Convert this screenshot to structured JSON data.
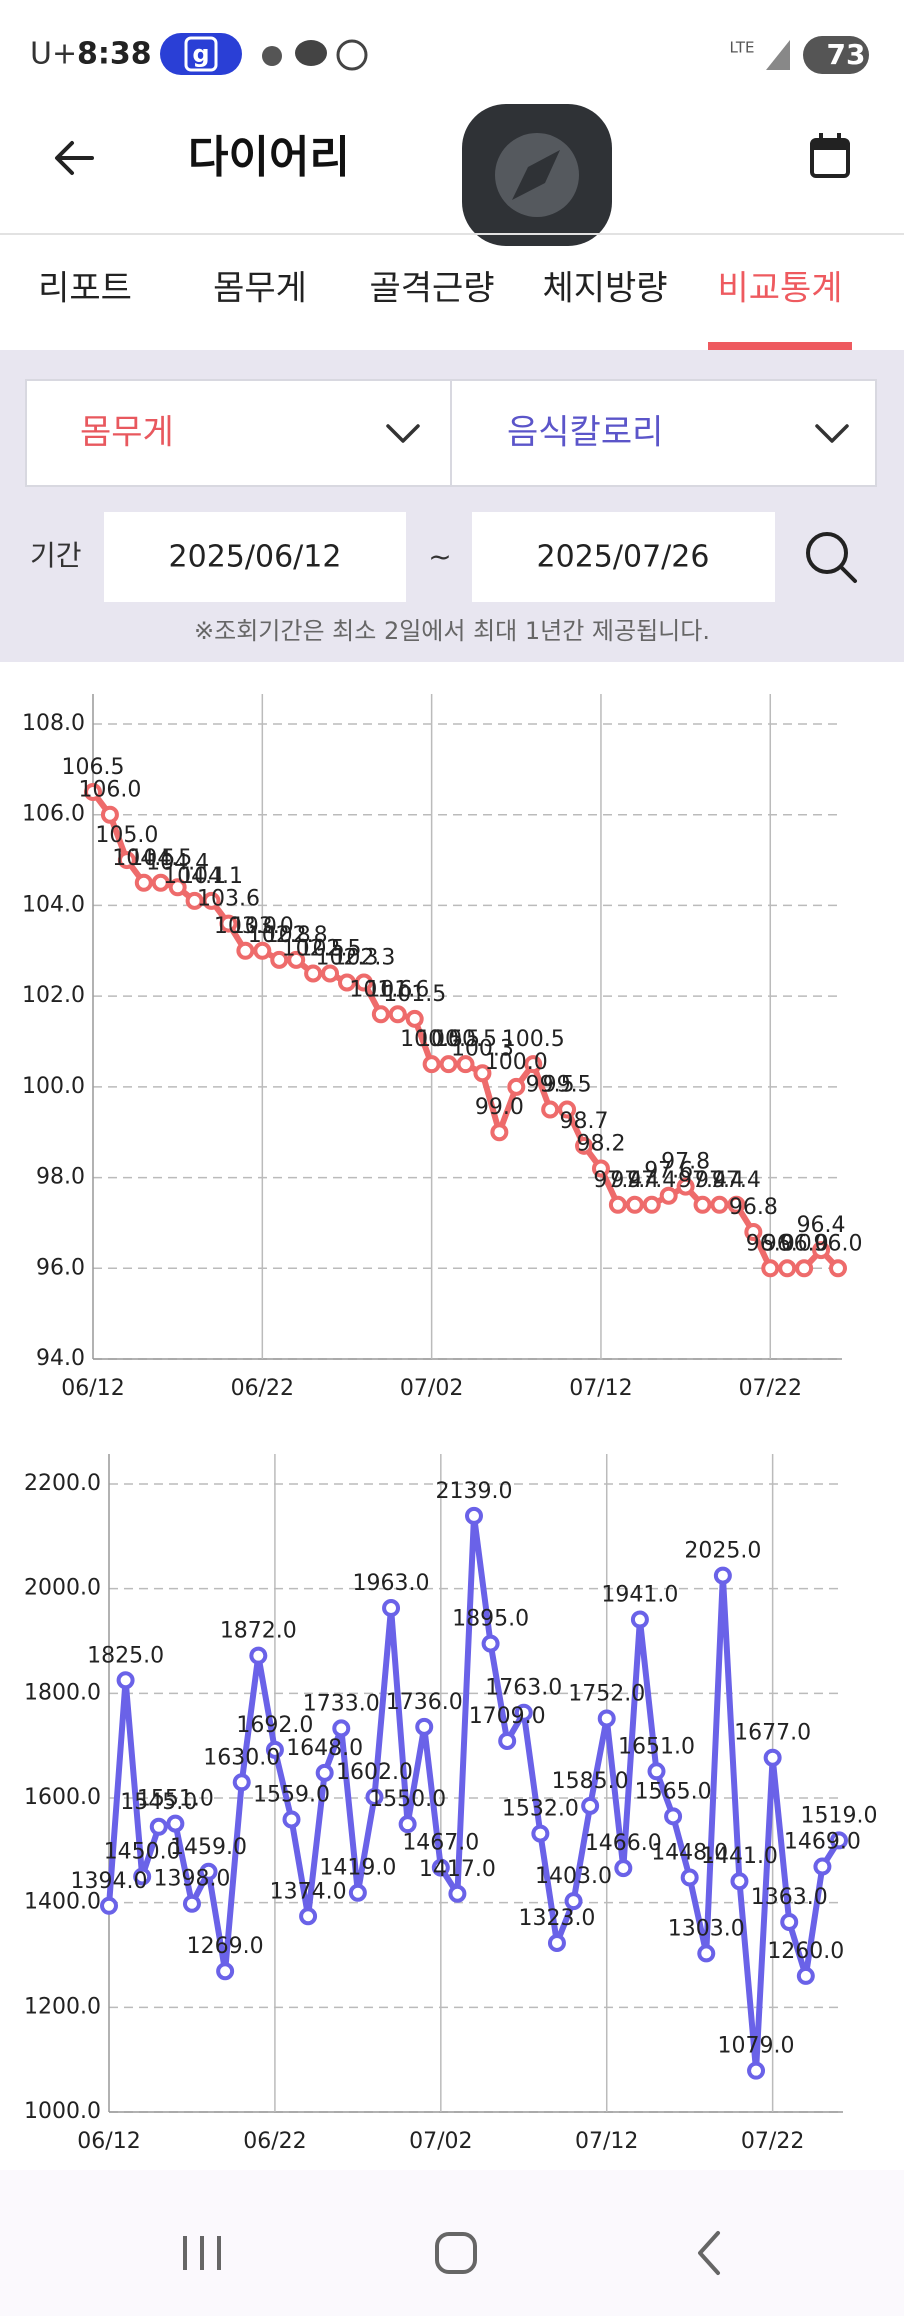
{
  "status_bar": {
    "carrier": "U+",
    "time": "8:38",
    "app_badge": "g",
    "network": "LTE",
    "battery": "73"
  },
  "header": {
    "title": "다이어리"
  },
  "tabs": [
    "리포트",
    "몸무게",
    "골격근량",
    "체지방량",
    "비교통계"
  ],
  "active_tab": 4,
  "selectors": [
    {
      "label": "몸무게",
      "color": "#e8585e"
    },
    {
      "label": "음식칼로리",
      "color": "#5b55c9"
    }
  ],
  "period": {
    "label": "기간",
    "start": "2025/06/12",
    "separator": "~",
    "end": "2025/07/26"
  },
  "note": "※조회기간은 최소 2일에서 최대 1년간 제공됩니다.",
  "chart_data": [
    {
      "type": "line",
      "categories": [
        "06/12",
        null,
        null,
        null,
        null,
        null,
        null,
        null,
        null,
        null,
        "06/22",
        null,
        null,
        null,
        null,
        null,
        null,
        null,
        null,
        null,
        "07/02",
        null,
        null,
        null,
        null,
        null,
        null,
        null,
        null,
        null,
        "07/12",
        null,
        null,
        null,
        null,
        null,
        null,
        null,
        null,
        null,
        "07/22",
        null,
        null,
        null,
        null
      ],
      "values": [
        106.5,
        106.0,
        105.0,
        104.5,
        104.5,
        104.4,
        104.1,
        104.1,
        103.6,
        103.0,
        103.0,
        102.8,
        102.8,
        102.5,
        102.5,
        102.3,
        102.3,
        101.6,
        101.6,
        101.5,
        100.5,
        100.5,
        100.5,
        100.3,
        99.0,
        100.0,
        100.5,
        99.5,
        99.5,
        98.7,
        98.2,
        97.4,
        97.4,
        97.4,
        97.6,
        97.8,
        97.4,
        97.4,
        97.4,
        96.8,
        96.0,
        96.0,
        96.0,
        96.4,
        96.0
      ],
      "value_labels": [
        "106.5",
        "106.0",
        "105.0",
        "104.5",
        "104.5",
        "104.4",
        "104.1",
        "104.1",
        "103.6",
        "103.0",
        "103.0",
        "102.8",
        "102.8",
        "102.5",
        "102.5",
        "102.3",
        "102.3",
        "101.6",
        "101.6",
        "101.5",
        "100.5",
        "100.5",
        "100.5",
        "100.3",
        "99.0",
        "100.0",
        "100.5",
        "99.5",
        "99.5",
        "98.7",
        "98.2",
        "97.4",
        "97.4",
        "97.4",
        "97.6",
        "97.8",
        "97.4",
        "97.4",
        "97.4",
        "96.8",
        "96.0",
        "96.0",
        "96.0",
        "96.4",
        "96.0"
      ],
      "color": "#ee6b6b",
      "ylim": [
        94,
        108
      ],
      "yticks": [
        {
          "value": 94,
          "label": "94.0"
        },
        {
          "value": 96,
          "label": "96.0"
        },
        {
          "value": 98,
          "label": "98.0"
        },
        {
          "value": 100,
          "label": "100.0"
        },
        {
          "value": 102,
          "label": "102.0"
        },
        {
          "value": 104,
          "label": "104.0"
        },
        {
          "value": 106,
          "label": "106.0"
        },
        {
          "value": 108,
          "label": "108.0"
        }
      ],
      "grid": true
    },
    {
      "type": "line",
      "categories": [
        "06/12",
        null,
        null,
        null,
        null,
        null,
        null,
        null,
        null,
        null,
        "06/22",
        null,
        null,
        null,
        null,
        null,
        null,
        null,
        null,
        null,
        "07/02",
        null,
        null,
        null,
        null,
        null,
        null,
        null,
        null,
        null,
        "07/12",
        null,
        null,
        null,
        null,
        null,
        null,
        null,
        null,
        null,
        "07/22",
        null,
        null,
        null,
        null
      ],
      "values": [
        1394,
        1825,
        1450,
        1545,
        1551,
        1398,
        1459,
        1269,
        1630,
        1872,
        1692,
        1559,
        1374,
        1648,
        1733,
        1419,
        1602,
        1963,
        1550,
        1736,
        1467,
        1417,
        2139,
        1895,
        1709,
        1763,
        1532,
        1323,
        1403,
        1585,
        1752,
        1466,
        1941,
        1651,
        1565,
        1448,
        1303,
        2025,
        1441,
        1079,
        1677,
        1363,
        1260,
        1469,
        1519
      ],
      "value_labels": [
        "1394.0",
        "1825.0",
        "1450.0",
        "1545.0",
        "1551.0",
        "1398.0",
        "1459.0",
        "1269.0",
        "1630.0",
        "1872.0",
        "1692.0",
        "1559.0",
        "1374.0",
        "1648.0",
        "1733.0",
        "1419.0",
        "1602.0",
        "1963.0",
        "1550.0",
        "1736.0",
        "1467.0",
        "1417.0",
        "2139.0",
        "1895.0",
        "1709.0",
        "1763.0",
        "1532.0",
        "1323.0",
        "1403.0",
        "1585.0",
        "1752.0",
        "1466.0",
        "1941.0",
        "1651.0",
        "1565.0",
        "1448.0",
        "1303.0",
        "2025.0",
        "1441.0",
        "1079.0",
        "1677.0",
        "1363.0",
        "1260.0",
        "1469.0",
        "1519.0"
      ],
      "color": "#6a62e8",
      "ylim": [
        1000,
        2200
      ],
      "yticks": [
        {
          "value": 1000,
          "label": "1000.0"
        },
        {
          "value": 1200,
          "label": "1200.0"
        },
        {
          "value": 1400,
          "label": "1400.0"
        },
        {
          "value": 1600,
          "label": "1600.0"
        },
        {
          "value": 1800,
          "label": "1800.0"
        },
        {
          "value": 2000,
          "label": "2000.0"
        },
        {
          "value": 2200,
          "label": "2200.0"
        }
      ],
      "grid": true
    }
  ]
}
